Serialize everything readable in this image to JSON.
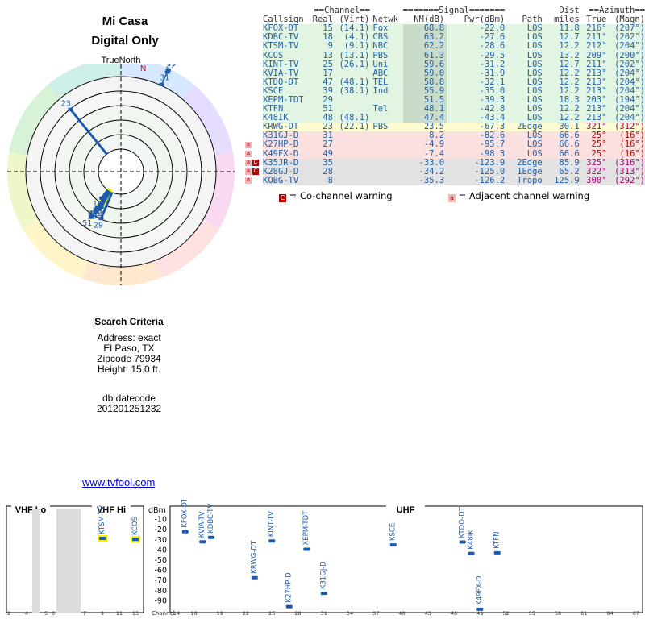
{
  "page": {
    "title_line1": "Mi Casa",
    "title_line2": "Digital Only",
    "true_north_label": "TrueNorth",
    "north_marker": "N",
    "link_text": "www.tvfool.com"
  },
  "search_criteria": {
    "header": "Search Criteria",
    "address": "Address: exact",
    "city": "El Paso, TX",
    "zipcode": "Zipcode 79934",
    "height": "Height: 15.0 ft.",
    "db_label": "db datecode",
    "db_value": "201201251232"
  },
  "table": {
    "group_headers": {
      "channel": "==Channel==",
      "signal": "=======Signal=======",
      "dist": "Dist",
      "azimuth": "==Azimuth=="
    },
    "columns": [
      "Callsign",
      "Real",
      "(Virt)",
      "Netwk",
      "NM(dB)",
      "Pwr(dBm)",
      "Path",
      "miles",
      "True",
      "(Magn)"
    ],
    "rows": [
      {
        "call": "KFOX-DT",
        "real": "15",
        "virt": "(14.1)",
        "net": "Fox",
        "nm": "68.8",
        "pwr": "-22.0",
        "path": "LOS",
        "dist": "11.8",
        "true": "216°",
        "magn": "(207°)",
        "zone": "green"
      },
      {
        "call": "KDBC-TV",
        "real": "18",
        "virt": "(4.1)",
        "net": "CBS",
        "nm": "63.2",
        "pwr": "-27.6",
        "path": "LOS",
        "dist": "12.7",
        "true": "211°",
        "magn": "(202°)",
        "zone": "green"
      },
      {
        "call": "KTSM-TV",
        "real": "9",
        "virt": "(9.1)",
        "net": "NBC",
        "nm": "62.2",
        "pwr": "-28.6",
        "path": "LOS",
        "dist": "12.2",
        "true": "212°",
        "magn": "(204°)",
        "zone": "green"
      },
      {
        "call": "KCOS",
        "real": "13",
        "virt": "(13.1)",
        "net": "PBS",
        "nm": "61.3",
        "pwr": "-29.5",
        "path": "LOS",
        "dist": "13.2",
        "true": "209°",
        "magn": "(200°)",
        "zone": "green"
      },
      {
        "call": "KINT-TV",
        "real": "25",
        "virt": "(26.1)",
        "net": "Uni",
        "nm": "59.6",
        "pwr": "-31.2",
        "path": "LOS",
        "dist": "12.7",
        "true": "211°",
        "magn": "(202°)",
        "zone": "green"
      },
      {
        "call": "KVIA-TV",
        "real": "17",
        "virt": "",
        "net": "ABC",
        "nm": "59.0",
        "pwr": "-31.9",
        "path": "LOS",
        "dist": "12.2",
        "true": "213°",
        "magn": "(204°)",
        "zone": "green"
      },
      {
        "call": "KTDO-DT",
        "real": "47",
        "virt": "(48.1)",
        "net": "TEL",
        "nm": "58.8",
        "pwr": "-32.1",
        "path": "LOS",
        "dist": "12.2",
        "true": "213°",
        "magn": "(204°)",
        "zone": "green"
      },
      {
        "call": "KSCE",
        "real": "39",
        "virt": "(38.1)",
        "net": "Ind",
        "nm": "55.9",
        "pwr": "-35.0",
        "path": "LOS",
        "dist": "12.2",
        "true": "213°",
        "magn": "(204°)",
        "zone": "green"
      },
      {
        "call": "XEPM-TDT",
        "real": "29",
        "virt": "",
        "net": "",
        "nm": "51.5",
        "pwr": "-39.3",
        "path": "LOS",
        "dist": "18.3",
        "true": "203°",
        "magn": "(194°)",
        "zone": "green"
      },
      {
        "call": "KTFN",
        "real": "51",
        "virt": "",
        "net": "Tel",
        "nm": "48.1",
        "pwr": "-42.8",
        "path": "LOS",
        "dist": "12.2",
        "true": "213°",
        "magn": "(204°)",
        "zone": "green"
      },
      {
        "call": "K48IK",
        "real": "48",
        "virt": "(48.1)",
        "net": "",
        "nm": "47.4",
        "pwr": "-43.4",
        "path": "LOS",
        "dist": "12.2",
        "true": "213°",
        "magn": "(204°)",
        "zone": "green"
      },
      {
        "call": "KRWG-DT",
        "real": "23",
        "virt": "(22.1)",
        "net": "PBS",
        "nm": "23.5",
        "pwr": "-67.3",
        "path": "2Edge",
        "dist": "30.1",
        "true": "321°",
        "magn": "(312°)",
        "zone": "yellow"
      },
      {
        "call": "K31GJ-D",
        "real": "31",
        "virt": "",
        "net": "",
        "nm": "8.2",
        "pwr": "-82.6",
        "path": "LOS",
        "dist": "66.6",
        "true": "25°",
        "magn": "(16°)",
        "zone": "red"
      },
      {
        "call": "K27HP-D",
        "real": "27",
        "virt": "",
        "net": "",
        "nm": "-4.9",
        "pwr": "-95.7",
        "path": "LOS",
        "dist": "66.6",
        "true": "25°",
        "magn": "(16°)",
        "zone": "red"
      },
      {
        "call": "K49FX-D",
        "real": "49",
        "virt": "",
        "net": "",
        "nm": "-7.4",
        "pwr": "-98.3",
        "path": "LOS",
        "dist": "66.6",
        "true": "25°",
        "magn": "(16°)",
        "zone": "red"
      },
      {
        "call": "K35JR-D",
        "real": "35",
        "virt": "",
        "net": "",
        "nm": "-33.0",
        "pwr": "-123.9",
        "path": "2Edge",
        "dist": "85.9",
        "true": "325°",
        "magn": "(316°)",
        "zone": "gray"
      },
      {
        "call": "K28GJ-D",
        "real": "28",
        "virt": "",
        "net": "",
        "nm": "-34.2",
        "pwr": "-125.0",
        "path": "1Edge",
        "dist": "65.2",
        "true": "322°",
        "magn": "(313°)",
        "zone": "gray"
      },
      {
        "call": "KOBG-TV",
        "real": "8",
        "virt": "",
        "net": "",
        "nm": "-35.3",
        "pwr": "-126.2",
        "path": "Tropo",
        "dist": "125.9",
        "true": "300°",
        "magn": "(292°)",
        "zone": "gray"
      }
    ]
  },
  "legend": {
    "co_label": "= Co-channel warning",
    "adj_label": "= Adjacent channel warning",
    "co_glyph": "C",
    "adj_glyph": "a"
  },
  "colors": {
    "callsign": "#1f5fa8",
    "zone_green": "#e2f5e2",
    "zone_yellow": "#fdfbd2",
    "zone_red": "#fbe0e0",
    "zone_gray": "#e2e2e2",
    "nm_shade": "#c9dccb",
    "azimuth_red": "#b00000",
    "azimuth_magenta": "#aa0077",
    "co_warning": "#b20000",
    "adj_warning": "#f3b5b5",
    "marker": "#1a5ab0",
    "highlight": "#f0f000"
  },
  "polar": {
    "stations": [
      {
        "label": "15",
        "az": 216,
        "nm": 68.8,
        "hl": false
      },
      {
        "label": "18",
        "az": 211,
        "nm": 63.2,
        "hl": false
      },
      {
        "label": "9",
        "az": 212,
        "nm": 62.2,
        "hl": true
      },
      {
        "label": "29",
        "az": 203,
        "nm": 51.5,
        "hl": false
      },
      {
        "label": "13",
        "az": 209,
        "nm": 61.3,
        "hl": true
      },
      {
        "label": "17",
        "az": 213,
        "nm": 59.0,
        "hl": true
      },
      {
        "label": "25",
        "az": 211,
        "nm": 59.6,
        "hl": false
      },
      {
        "label": "47",
        "az": 213,
        "nm": 58.8,
        "hl": true
      },
      {
        "label": "39",
        "az": 213,
        "nm": 55.9,
        "hl": true
      },
      {
        "label": "51",
        "az": 213,
        "nm": 48.1,
        "hl": true
      },
      {
        "label": "23",
        "az": 321,
        "nm": 23.5,
        "hl": false
      },
      {
        "label": "49",
        "az": 25,
        "nm": -7.4,
        "hl": false
      },
      {
        "label": "27",
        "az": 25,
        "nm": -4.9,
        "hl": false
      },
      {
        "label": "31",
        "az": 25,
        "nm": 8.2,
        "hl": false
      }
    ]
  },
  "spectrum": {
    "bands": [
      "VHF Lo",
      "VHF Hi",
      "UHF"
    ],
    "y_unit": "dBm",
    "y_ticks": [
      "-10",
      "-20",
      "-30",
      "-40",
      "-50",
      "-60",
      "-70",
      "-80",
      "-90"
    ],
    "x_label": "Channel",
    "x_ticks_vhf": [
      "2",
      "4",
      "5",
      "6",
      "7",
      "9",
      "11",
      "13"
    ],
    "x_ticks_uhf": [
      "14",
      "16",
      "19",
      "22",
      "25",
      "28",
      "31",
      "34",
      "37",
      "40",
      "43",
      "46",
      "49",
      "52",
      "55",
      "58",
      "61",
      "64",
      "67",
      "69"
    ],
    "stations": [
      {
        "call": "KTSM-TV",
        "ch": 9,
        "pwr": -28.6,
        "hl": true
      },
      {
        "call": "KCOS",
        "ch": 13,
        "pwr": -29.5,
        "hl": true
      },
      {
        "call": "KFOX-DT",
        "ch": 15,
        "pwr": -22.0,
        "hl": false
      },
      {
        "call": "KVIA-TV",
        "ch": 17,
        "pwr": -31.9,
        "hl": false
      },
      {
        "call": "KDBC-TV",
        "ch": 18,
        "pwr": -27.6,
        "hl": false
      },
      {
        "call": "KRWG-DT",
        "ch": 23,
        "pwr": -67.3,
        "hl": false
      },
      {
        "call": "KINT-TV",
        "ch": 25,
        "pwr": -31.2,
        "hl": false
      },
      {
        "call": "K27HP-D",
        "ch": 27,
        "pwr": -95.7,
        "hl": false
      },
      {
        "call": "XEPM-TDT",
        "ch": 29,
        "pwr": -39.3,
        "hl": false
      },
      {
        "call": "K31GJ-D",
        "ch": 31,
        "pwr": -82.6,
        "hl": false
      },
      {
        "call": "KSCE",
        "ch": 39,
        "pwr": -35.0,
        "hl": false
      },
      {
        "call": "KTDO-DT",
        "ch": 47,
        "pwr": -32.1,
        "hl": false
      },
      {
        "call": "K48IK",
        "ch": 48,
        "pwr": -43.4,
        "hl": false
      },
      {
        "call": "K49FX-D",
        "ch": 49,
        "pwr": -98.3,
        "hl": false
      },
      {
        "call": "KTFN",
        "ch": 51,
        "pwr": -42.8,
        "hl": false
      }
    ]
  }
}
